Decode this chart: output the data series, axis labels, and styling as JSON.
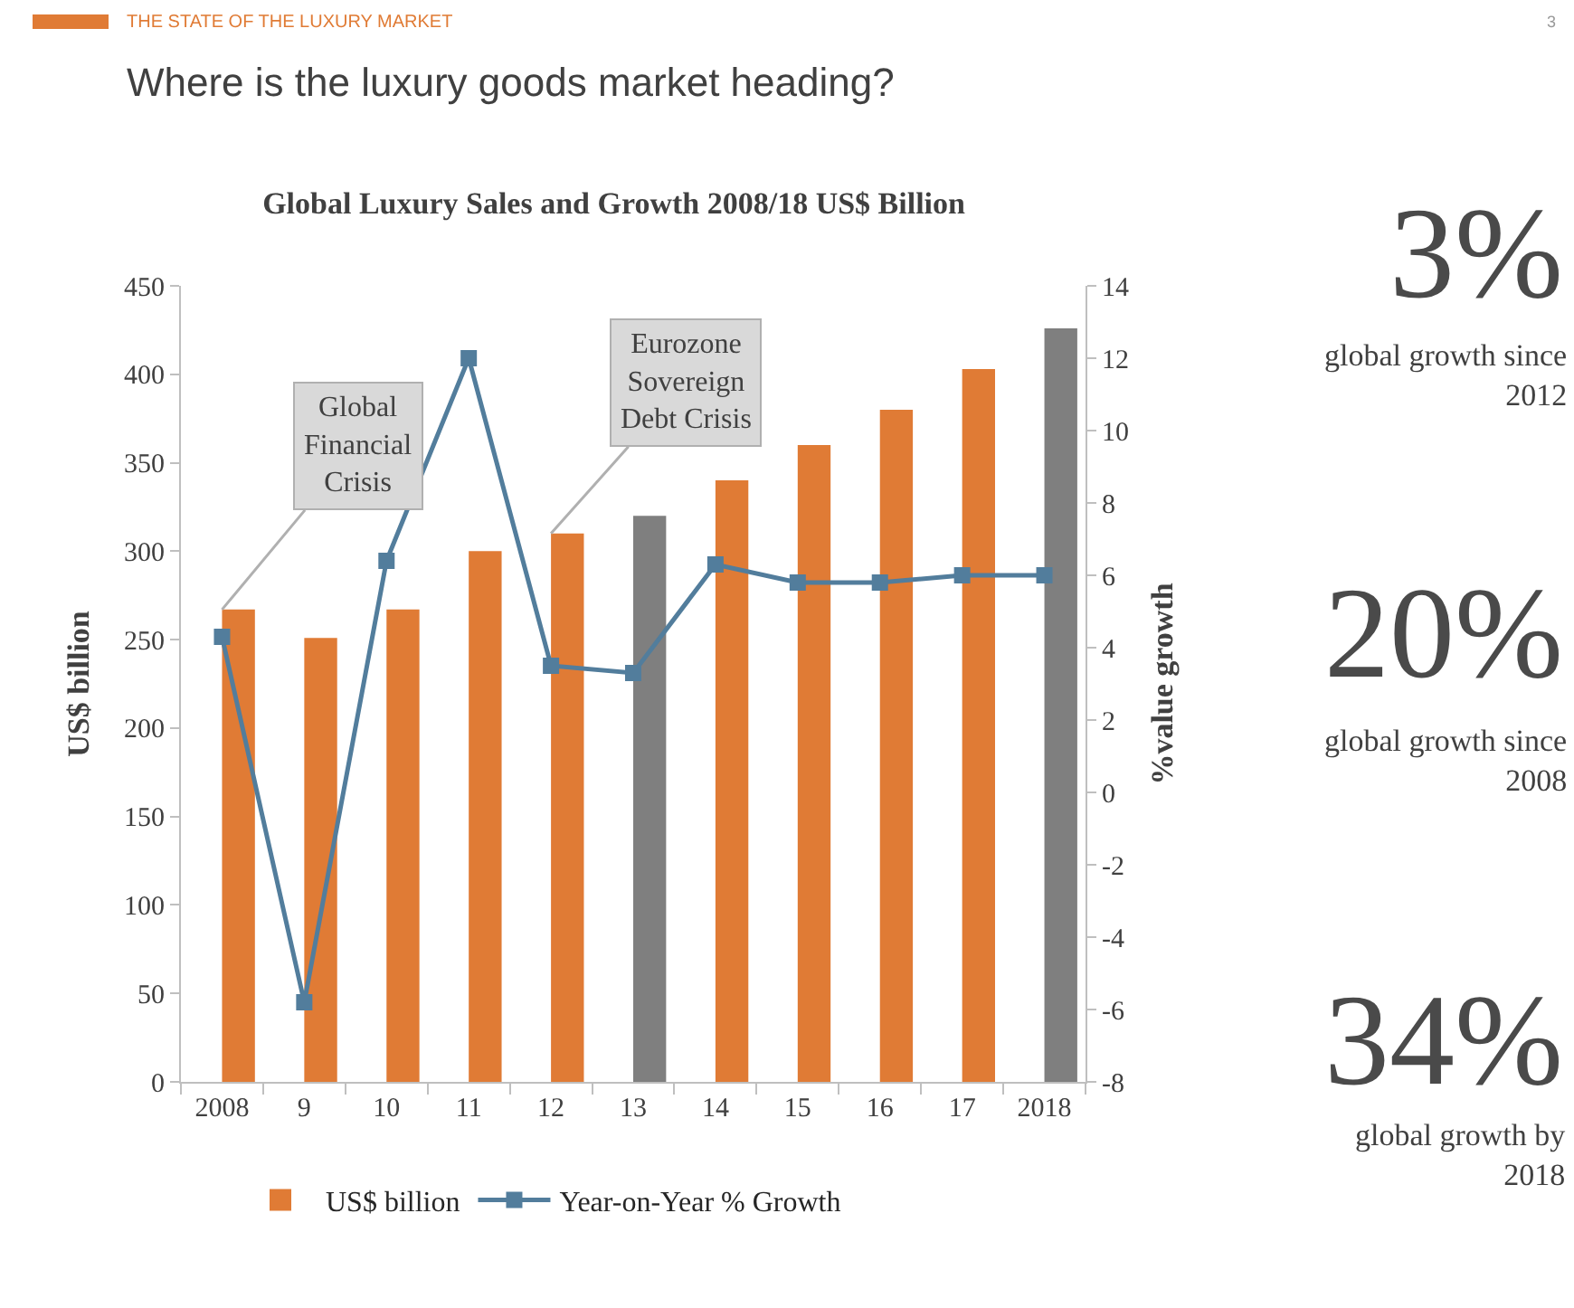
{
  "chart_data": {
    "type": "bar",
    "title": "Global Luxury Sales and Growth 2008/18 US$ Billion",
    "ylabel": "US$ billion",
    "y2label": "%value growth",
    "categories": [
      "2008",
      "9",
      "10",
      "11",
      "12",
      "13",
      "14",
      "15",
      "16",
      "17",
      "2018"
    ],
    "series": [
      {
        "name": "US$ billion",
        "type": "bar",
        "color": "#e07b35",
        "colors": [
          "#e07b35",
          "#e07b35",
          "#e07b35",
          "#e07b35",
          "#e07b35",
          "#7f7f7f",
          "#e07b35",
          "#e07b35",
          "#e07b35",
          "#e07b35",
          "#7f7f7f"
        ],
        "values": [
          267,
          251,
          267,
          300,
          310,
          320,
          340,
          360,
          380,
          403,
          426
        ]
      },
      {
        "name": "Year-on-Year % Growth",
        "type": "line",
        "axis": "y2",
        "color": "#527d9c",
        "values": [
          4.3,
          -5.8,
          6.4,
          12,
          3.5,
          3.3,
          6.3,
          5.8,
          5.8,
          6,
          6
        ]
      }
    ],
    "ylim": [
      0,
      450
    ],
    "yticks": [
      0,
      50,
      100,
      150,
      200,
      250,
      300,
      350,
      400,
      450
    ],
    "y2lim": [
      -8,
      14
    ],
    "y2ticks": [
      -8,
      -6,
      -4,
      -2,
      0,
      2,
      4,
      6,
      8,
      10,
      12,
      14
    ],
    "marker": "square",
    "line_style": "solid",
    "grid": false,
    "legend": "bottom",
    "annotations": [
      "THE STATE OF THE LUXURY MARKET",
      "Where is the luxury goods market heading?",
      "3",
      {
        "text": "Global\nFinancial\nCrisis",
        "x": "2008",
        "y": 267
      },
      {
        "text": "Eurozone\nSovereign\nDebt Crisis",
        "x": "12",
        "y": 310
      },
      "3%",
      "global growth since\n2012",
      "20%",
      "global growth since\n2008",
      "34%",
      "global growth by\n2018"
    ]
  }
}
